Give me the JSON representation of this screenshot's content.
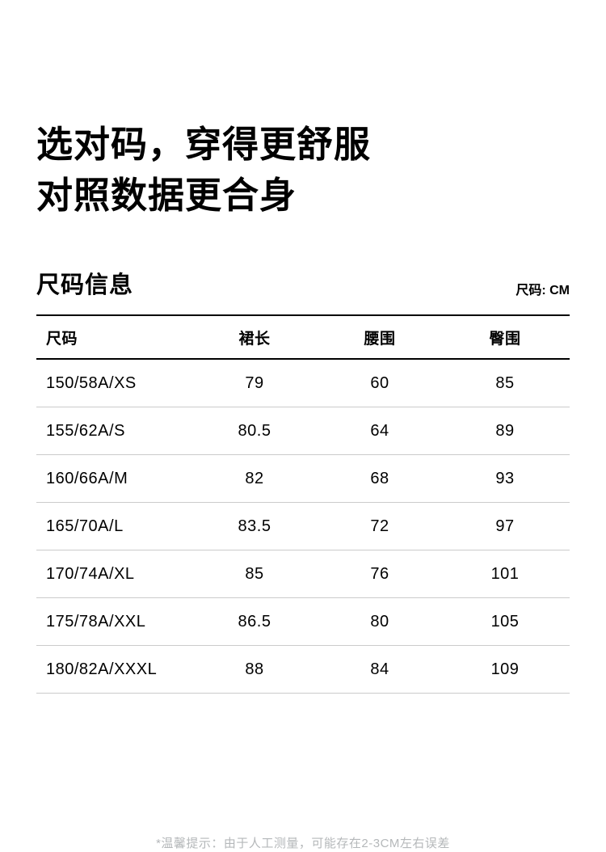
{
  "header": {
    "line1": "选对码，穿得更舒服",
    "line2": "对照数据更合身"
  },
  "size_section": {
    "title": "尺码信息",
    "unit_label": "尺码: CM",
    "footnote": "*温馨提示：由于人工测量，可能存在2-3CM左右误差"
  },
  "chart_data": {
    "type": "table",
    "title": "尺码信息",
    "unit": "CM",
    "columns": [
      "尺码",
      "裙长",
      "腰围",
      "臀围"
    ],
    "rows": [
      [
        "150/58A/XS",
        "79",
        "60",
        "85"
      ],
      [
        "155/62A/S",
        "80.5",
        "64",
        "89"
      ],
      [
        "160/66A/M",
        "82",
        "68",
        "93"
      ],
      [
        "165/70A/L",
        "83.5",
        "72",
        "97"
      ],
      [
        "170/74A/XL",
        "85",
        "76",
        "101"
      ],
      [
        "175/78A/XXL",
        "86.5",
        "80",
        "105"
      ],
      [
        "180/82A/XXXL",
        "88",
        "84",
        "109"
      ]
    ]
  },
  "colors": {
    "text": "#000000",
    "divider_heavy": "#000000",
    "divider_light": "#cbcbcb",
    "footnote_gray": "#b5b8ba",
    "background": "#ffffff"
  }
}
